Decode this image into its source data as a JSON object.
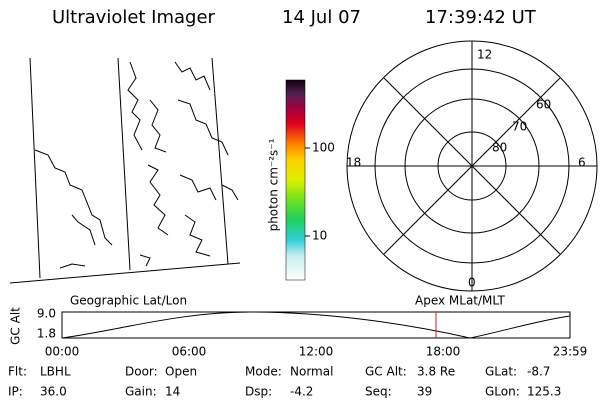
{
  "header": {
    "title": "Ultraviolet Imager",
    "date": "14 Jul 07",
    "time": "17:39:42 UT"
  },
  "colorbar": {
    "label": "photon cm⁻²s⁻¹",
    "ticks": [
      "100",
      "10"
    ]
  },
  "polar": {
    "mlt_labels": [
      "12",
      "6",
      "0",
      "18"
    ],
    "lat_labels": [
      "60",
      "70",
      "80"
    ]
  },
  "orbit": {
    "left_label": "Geographic Lat/Lon",
    "right_label": "Apex MLat/MLT",
    "axis_label": "GC Alt",
    "y_labels": [
      "9.0",
      "1.8"
    ],
    "x_labels": [
      "00:00",
      "06:00",
      "12:00",
      "18:00",
      "23:59"
    ]
  },
  "footer": {
    "rows": [
      [
        {
          "label": "Flt:",
          "value": "LBHL"
        },
        {
          "label": "Door:",
          "value": "Open"
        },
        {
          "label": "Mode:",
          "value": "Normal"
        },
        {
          "label": "GC Alt:",
          "value": "3.8 Re"
        },
        {
          "label": "GLat:",
          "value": "-8.7"
        }
      ],
      [
        {
          "label": "IP:",
          "value": "36.0"
        },
        {
          "label": "Gain:",
          "value": "14"
        },
        {
          "label": "Dsp:",
          "value": "-4.2"
        },
        {
          "label": "Seq:",
          "value": "39"
        },
        {
          "label": "GLon:",
          "value": "125.3"
        }
      ]
    ]
  }
}
